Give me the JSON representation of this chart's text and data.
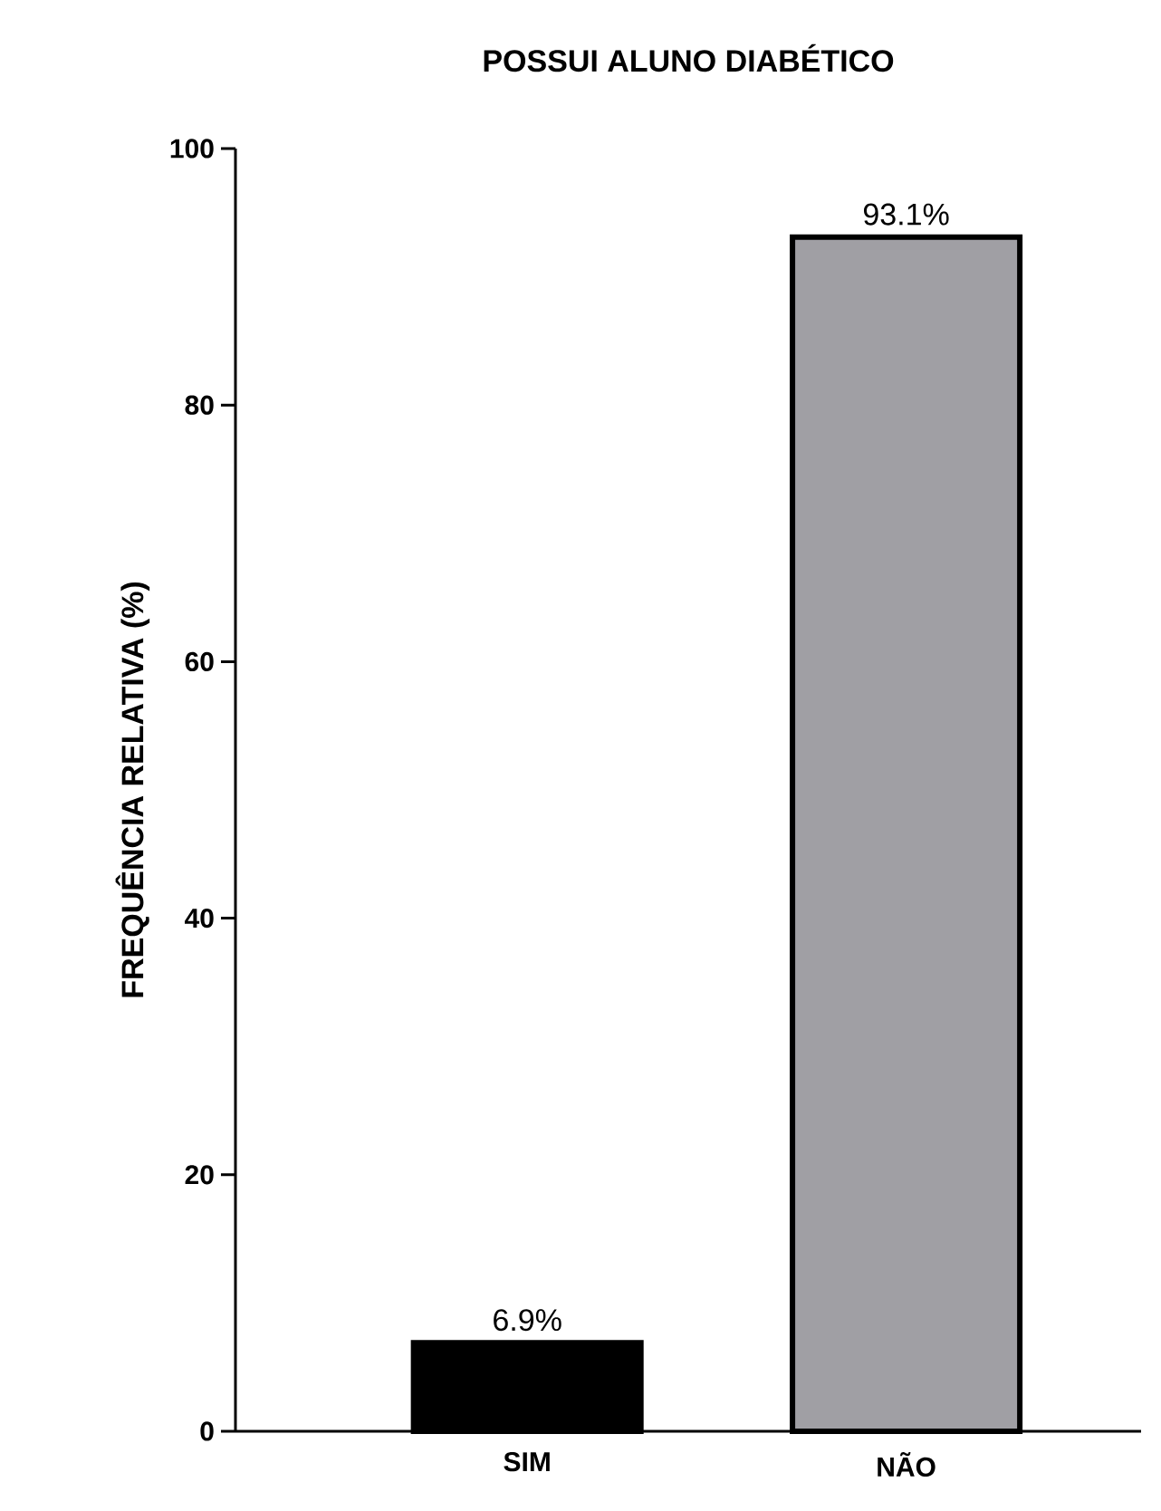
{
  "chart_data": {
    "type": "bar",
    "title": "POSSUI ALUNO DIABÉTICO",
    "ylabel": "FREQUÊNCIA RELATIVA (%)",
    "categories": [
      "SIM",
      "NÃO"
    ],
    "values": [
      6.9,
      93.1
    ],
    "colors": [
      "#000000",
      "#a09fa4"
    ],
    "value_labels": [
      "6.9%",
      "93.1%"
    ],
    "ylim": [
      0,
      100
    ],
    "yticks": [
      0,
      20,
      40,
      60,
      80,
      100
    ]
  }
}
